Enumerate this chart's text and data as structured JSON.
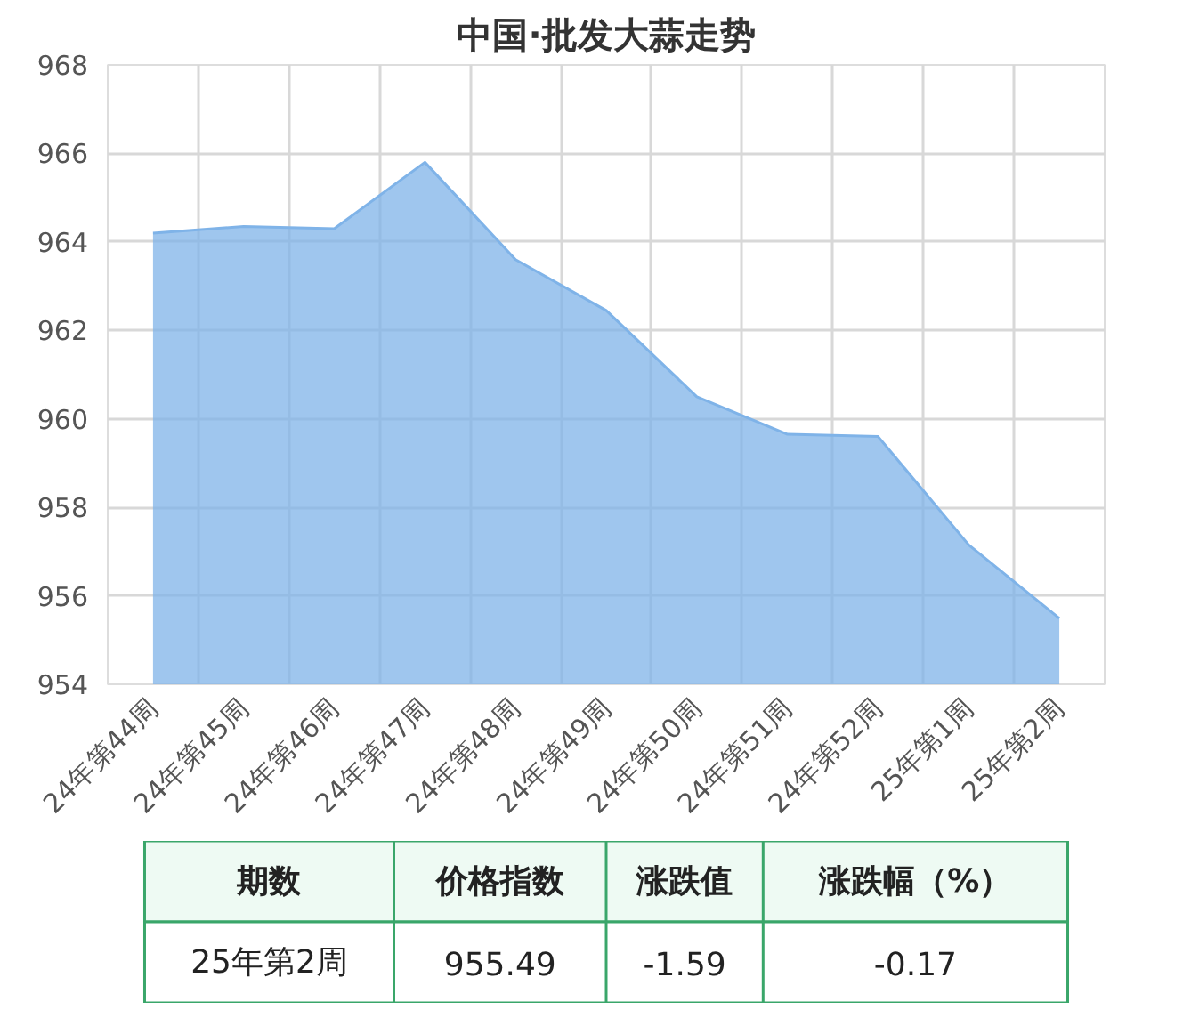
{
  "chart_data": {
    "type": "area",
    "title": "中国·批发大蒜走势",
    "categories": [
      "24年第44周",
      "24年第45周",
      "24年第46周",
      "24年第47周",
      "24年第48周",
      "24年第49周",
      "24年第50周",
      "24年第51周",
      "24年第52周",
      "25年第1周",
      "25年第2周"
    ],
    "series": [
      {
        "color": "#7fb3e8",
        "values": [
          964.2,
          964.35,
          964.3,
          965.8,
          963.6,
          962.45,
          960.5,
          959.65,
          959.6,
          957.15,
          955.49
        ]
      }
    ],
    "ylim": [
      954,
      968
    ],
    "yticks": [
      954,
      956,
      958,
      960,
      962,
      964,
      966,
      968
    ],
    "grid": true,
    "annotations": [
      "期数",
      "价格指数",
      "涨跌值",
      "涨跌幅（%）",
      "25年第2周",
      "955.49",
      "-1.59",
      "-0.17"
    ]
  }
}
